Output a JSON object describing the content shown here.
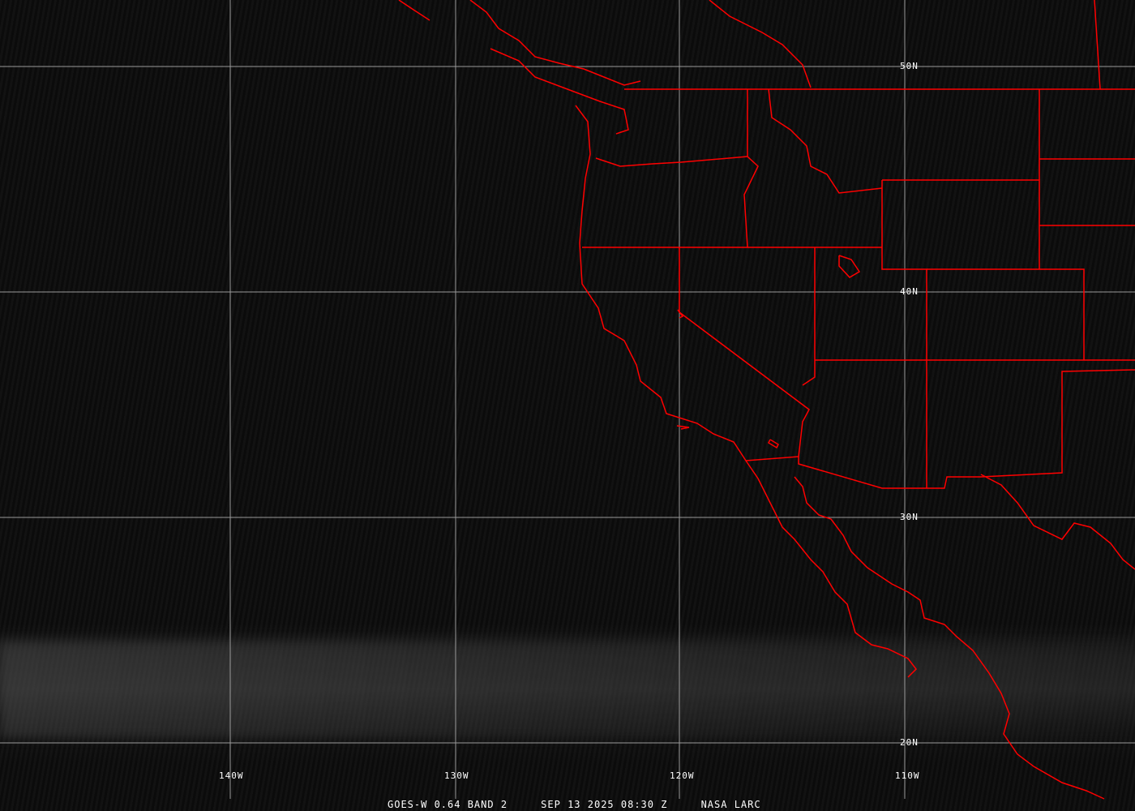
{
  "caption": {
    "satellite": "GOES-W 0.64 BAND 2",
    "datetime": "SEP 13 2025 08:30 Z",
    "source": "NASA LARC"
  },
  "grid": {
    "lat_labels": [
      "50N",
      "40N",
      "30N",
      "20N"
    ],
    "lon_labels": [
      "140W",
      "130W",
      "120W",
      "110W"
    ],
    "color": "#9a9a9a"
  },
  "boundaries_color": "#ff0000"
}
